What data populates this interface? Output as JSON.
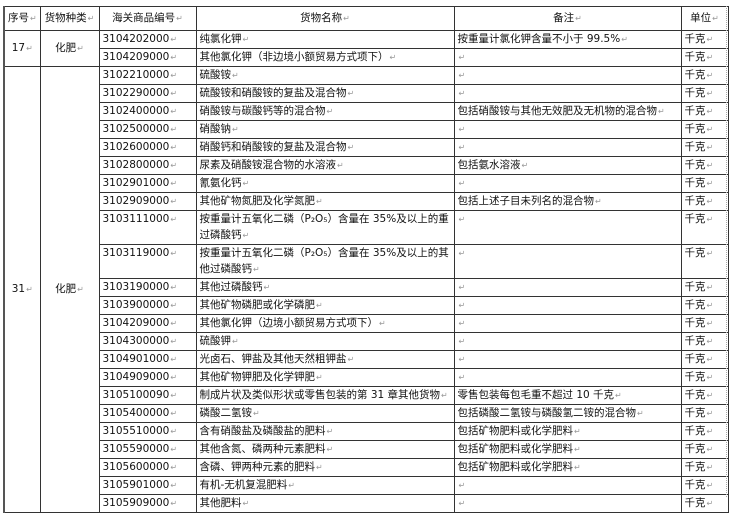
{
  "table": {
    "headers": [
      "序号",
      "货物种类",
      "海关商品编号",
      "货物名称",
      "备注",
      "单位"
    ],
    "groups": [
      {
        "seq": "17",
        "category": "化肥",
        "rows": [
          {
            "code": "3104202000",
            "name": "纯氯化钾",
            "note": "按重量计氯化钾含量不小于 99.5%",
            "unit": "千克"
          },
          {
            "code": "3104209000",
            "name": "其他氯化钾（非边境小额贸易方式项下）",
            "note": "",
            "unit": "千克"
          }
        ]
      },
      {
        "seq": "31",
        "category": "化肥",
        "rows": [
          {
            "code": "3102210000",
            "name": "硫酸铵",
            "note": "",
            "unit": "千克"
          },
          {
            "code": "3102290000",
            "name": "硫酸铵和硝酸铵的复盐及混合物",
            "note": "",
            "unit": "千克"
          },
          {
            "code": "3102400000",
            "name": "硝酸铵与碳酸钙等的混合物",
            "note": "包括硝酸铵与其他无效肥及无机物的混合物",
            "unit": "千克"
          },
          {
            "code": "3102500000",
            "name": "硝酸钠",
            "note": "",
            "unit": "千克"
          },
          {
            "code": "3102600000",
            "name": "硝酸钙和硝酸铵的复盐及混合物",
            "note": "",
            "unit": "千克"
          },
          {
            "code": "3102800000",
            "name": "尿素及硝酸铵混合物的水溶液",
            "note": "包括氨水溶液",
            "unit": "千克"
          },
          {
            "code": "3102901000",
            "name": "氰氨化钙",
            "note": "",
            "unit": "千克"
          },
          {
            "code": "3102909000",
            "name": "其他矿物氮肥及化学氮肥",
            "note": "包括上述子目未列名的混合物",
            "unit": "千克"
          },
          {
            "code": "3103111000",
            "name": "按重量计五氧化二磷（P₂O₅）含量在 35%及以上的重过磷酸钙",
            "note": "",
            "unit": "千克",
            "tall": true
          },
          {
            "code": "3103119000",
            "name": "按重量计五氧化二磷（P₂O₅）含量在 35%及以上的其他过磷酸钙",
            "note": "",
            "unit": "千克",
            "tall": true
          },
          {
            "code": "3103190000",
            "name": "其他过磷酸钙",
            "note": "",
            "unit": "千克"
          },
          {
            "code": "3103900000",
            "name": "其他矿物磷肥或化学磷肥",
            "note": "",
            "unit": "千克"
          },
          {
            "code": "3104209000",
            "name": "其他氯化钾（边境小额贸易方式项下）",
            "note": "",
            "unit": "千克"
          },
          {
            "code": "3104300000",
            "name": "硫酸钾",
            "note": "",
            "unit": "千克"
          },
          {
            "code": "3104901000",
            "name": "光卤石、钾盐及其他天然粗钾盐",
            "note": "",
            "unit": "千克"
          },
          {
            "code": "3104909000",
            "name": "其他矿物钾肥及化学钾肥",
            "note": "",
            "unit": "千克"
          },
          {
            "code": "3105100090",
            "name": "制成片状及类似形状或零售包装的第 31 章其他货物",
            "note": "零售包装每包毛重不超过 10 千克",
            "unit": "千克"
          },
          {
            "code": "3105400000",
            "name": "磷酸二氢铵",
            "note": "包括磷酸二氢铵与磷酸氢二铵的混合物",
            "unit": "千克"
          },
          {
            "code": "3105510000",
            "name": "含有硝酸盐及磷酸盐的肥料",
            "note": "包括矿物肥料或化学肥料",
            "unit": "千克"
          },
          {
            "code": "3105590000",
            "name": "其他含氮、磷两种元素肥料",
            "note": "包括矿物肥料或化学肥料",
            "unit": "千克"
          },
          {
            "code": "3105600000",
            "name": "含磷、钾两种元素的肥料",
            "note": "包括矿物肥料或化学肥料",
            "unit": "千克"
          },
          {
            "code": "3105901000",
            "name": "有机-无机复混肥料",
            "note": "",
            "unit": "千克"
          },
          {
            "code": "3105909000",
            "name": "其他肥料",
            "note": "",
            "unit": "千克"
          }
        ]
      }
    ]
  }
}
